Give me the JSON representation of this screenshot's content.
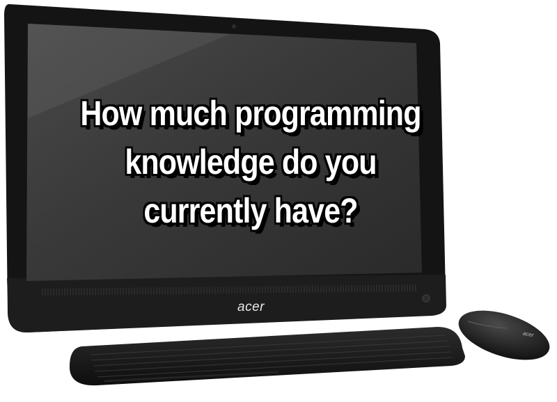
{
  "screen_caption": {
    "lines": [
      "How much programming",
      "knowledge do you",
      "currently have?"
    ]
  },
  "monitor": {
    "brand": "acer"
  },
  "mouse": {
    "brand": "acer"
  },
  "colors": {
    "bezel": "#151515",
    "screen": "#3a3a3a",
    "caption_text": "#ffffff",
    "caption_outline": "#000000"
  }
}
